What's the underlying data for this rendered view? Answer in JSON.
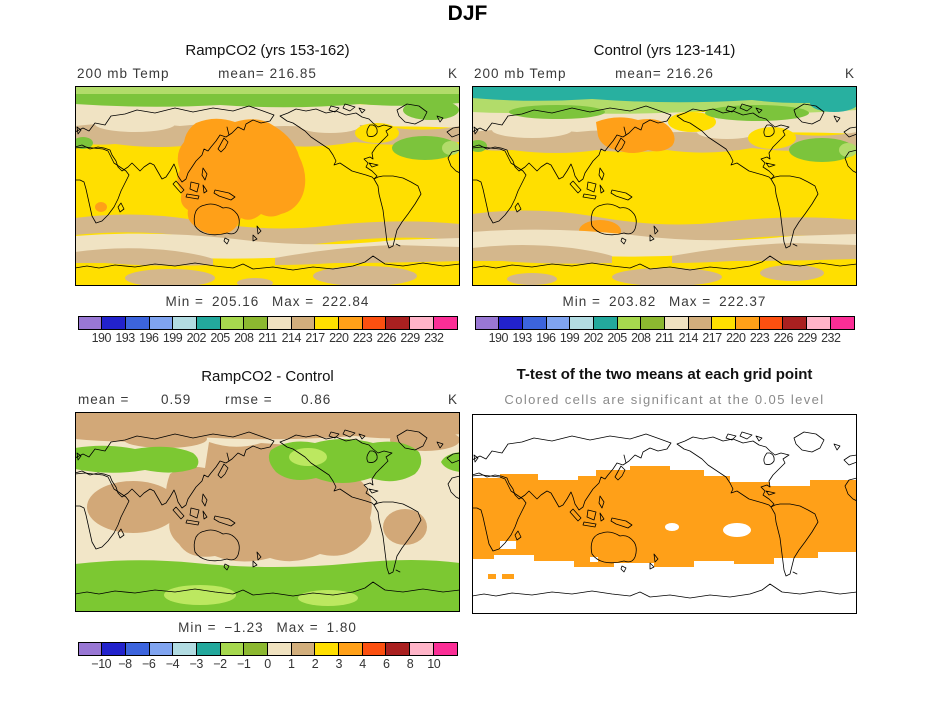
{
  "title": "DJF",
  "map_colors": {
    "yellow": "#ffdf00",
    "orange": "#ffa018",
    "cream": "#f0e3c3",
    "tan": "#d4b78c",
    "lgreen": "#b2dc6a",
    "green": "#7cc43c",
    "teal": "#28b0a0",
    "cream2": "#f2e6c8",
    "tan2": "#d2a878",
    "green2": "#7cc832",
    "lgreen2": "#bce860"
  },
  "colorbars": {
    "temp": {
      "cells": [
        "#9977d4",
        "#2222cc",
        "#3c64dd",
        "#80a4f0",
        "#b2dce2",
        "#23a89c",
        "#a6d84e",
        "#8cb830",
        "#f0e2c0",
        "#d2ae7c",
        "#ffdf00",
        "#ffa018",
        "#fc5010",
        "#aa2020",
        "#ffb4c8",
        "#fb2e96"
      ],
      "labels": [
        "190",
        "193",
        "196",
        "199",
        "202",
        "205",
        "208",
        "211",
        "214",
        "217",
        "220",
        "223",
        "226",
        "229",
        "232"
      ]
    },
    "diff": {
      "cells": [
        "#9977d4",
        "#2222cc",
        "#3c64dd",
        "#80a4f0",
        "#b2dce2",
        "#23a89c",
        "#a6d84e",
        "#8cb830",
        "#f0e2c0",
        "#d2ae7c",
        "#ffdf00",
        "#ffa018",
        "#fc5010",
        "#aa2020",
        "#ffb4c8",
        "#fb2e96"
      ],
      "labels": [
        "−10",
        "−8",
        "−6",
        "−4",
        "−3",
        "−2",
        "−1",
        "0",
        "1",
        "2",
        "3",
        "4",
        "6",
        "8",
        "10"
      ]
    }
  },
  "panels": {
    "ramp": {
      "title": "RampCO2 (yrs 153-162)",
      "field": "200 mb Temp",
      "mean_label": "mean=",
      "mean": "216.85",
      "unit": "K",
      "min_label": "Min =",
      "min": "205.16",
      "max_label": "Max =",
      "max": "222.84"
    },
    "control": {
      "title": "Control (yrs 123-141)",
      "field": "200 mb Temp",
      "mean_label": "mean=",
      "mean": "216.26",
      "unit": "K",
      "min_label": "Min =",
      "min": "203.82",
      "max_label": "Max =",
      "max": "222.37"
    },
    "diff": {
      "title": "RampCO2 - Control",
      "mean_label": "mean =",
      "mean": "0.59",
      "rmse_label": "rmse =",
      "rmse": "0.86",
      "unit": "K",
      "min_label": "Min =",
      "min": "−1.23",
      "max_label": "Max =",
      "max": "1.80"
    },
    "ttest": {
      "title": "T-test of the two means at each grid point",
      "subtitle": "Colored cells are significant at the 0.05 level"
    }
  },
  "chart_data": {
    "type": "heatmap",
    "season": "DJF",
    "variable": "200 mb Temp",
    "units": "K",
    "layout": "2x2 global lat-lon contour maps, shared discrete palette, colorbar below each data panel",
    "palette": [
      "#9977d4",
      "#2222cc",
      "#3c64dd",
      "#80a4f0",
      "#b2dce2",
      "#23a89c",
      "#a6d84e",
      "#8cb830",
      "#f0e2c0",
      "#d2ae7c",
      "#ffdf00",
      "#ffa018",
      "#fc5010",
      "#aa2020",
      "#ffb4c8",
      "#fb2e96"
    ],
    "panels": [
      {
        "name": "RampCO2 (yrs 153-162)",
        "mean": 216.85,
        "min": 205.16,
        "max": 222.84,
        "levels": [
          190,
          193,
          196,
          199,
          202,
          205,
          208,
          211,
          214,
          217,
          220,
          223,
          226,
          229,
          232
        ]
      },
      {
        "name": "Control (yrs 123-141)",
        "mean": 216.26,
        "min": 203.82,
        "max": 222.37,
        "levels": [
          190,
          193,
          196,
          199,
          202,
          205,
          208,
          211,
          214,
          217,
          220,
          223,
          226,
          229,
          232
        ]
      },
      {
        "name": "RampCO2 - Control",
        "mean": 0.59,
        "rmse": 0.86,
        "min": -1.23,
        "max": 1.8,
        "levels": [
          -10,
          -8,
          -6,
          -4,
          -3,
          -2,
          -1,
          0,
          1,
          2,
          3,
          4,
          6,
          8,
          10
        ]
      },
      {
        "name": "T-test of the two means at each grid point",
        "note": "Colored cells are significant at the 0.05 level",
        "significance_level": 0.05,
        "significant_color": "#ffa018"
      }
    ]
  }
}
